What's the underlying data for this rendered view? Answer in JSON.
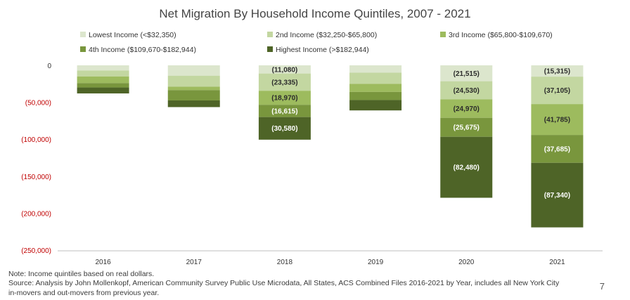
{
  "chart_data": {
    "type": "bar",
    "stacked": true,
    "title": "Net Migration By Household Income Quintiles, 2007 - 2021",
    "categories": [
      "2016",
      "2017",
      "2018",
      "2019",
      "2020",
      "2021"
    ],
    "ylim": [
      -250000,
      0
    ],
    "yticks": [
      0,
      -50000,
      -100000,
      -150000,
      -200000,
      -250000
    ],
    "ytick_labels": [
      "0",
      "(50,000)",
      "(100,000)",
      "(150,000)",
      "(200,000)",
      "(250,000)"
    ],
    "negative_tick_color": "#c00000",
    "grid": false,
    "legend_position": "top",
    "series": [
      {
        "name": "Lowest Income (<$32,350)",
        "color": "#dce6cd",
        "label_color": "#2b2b2b",
        "values": [
          -7000,
          -14000,
          -11080,
          -10000,
          -21515,
          -15315
        ],
        "labels": [
          "",
          "",
          "(11,080)",
          "",
          "(21,515)",
          "(15,315)"
        ]
      },
      {
        "name": "2nd Income ($32,250-$65,800)",
        "color": "#c3d7a1",
        "label_color": "#2b2b2b",
        "values": [
          -8000,
          -15000,
          -23335,
          -15000,
          -24530,
          -37105
        ],
        "labels": [
          "",
          "",
          "(23,335)",
          "",
          "(24,530)",
          "(37,105)"
        ]
      },
      {
        "name": "3rd Income ($65,800-$109,670)",
        "color": "#9dbb5e",
        "label_color": "#2b2b2b",
        "values": [
          -9000,
          -4500,
          -18970,
          -11000,
          -24970,
          -41785
        ],
        "labels": [
          "",
          "",
          "(18,970)",
          "",
          "(24,970)",
          "(41,785)"
        ]
      },
      {
        "name": "4th Income ($109,670-$182,944)",
        "color": "#79963d",
        "label_color": "#ffffff",
        "values": [
          -6000,
          -14000,
          -16615,
          -11000,
          -25675,
          -37685
        ],
        "labels": [
          "",
          "",
          "(16,615)",
          "",
          "(25,675)",
          "(37,685)"
        ]
      },
      {
        "name": "Highest Income (>$182,944)",
        "color": "#4e6427",
        "label_color": "#ffffff",
        "values": [
          -8000,
          -9000,
          -30580,
          -14000,
          -82480,
          -87340
        ],
        "labels": [
          "",
          "",
          "(30,580)",
          "",
          "(82,480)",
          "(87,340)"
        ]
      }
    ]
  },
  "page": {
    "note": "Note: Income quintiles based on real dollars.",
    "source_line1": "Source: Analysis by John Mollenkopf, American Community Survey Public Use Microdata, All States, ACS Combined Files 2016-2021 by Year, includes all New York City",
    "source_line2": "in-movers and out-movers from previous year.",
    "page_number": "7"
  }
}
